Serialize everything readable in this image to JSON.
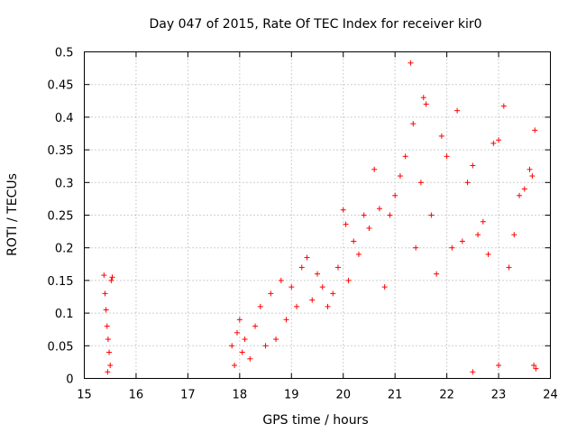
{
  "chart_data": {
    "type": "scatter",
    "title": "Day 047 of 2015, Rate Of TEC Index for receiver kir0",
    "xlabel": "GPS time / hours",
    "ylabel": "ROTI / TECUs",
    "xlim": [
      15,
      24
    ],
    "ylim": [
      0,
      0.5
    ],
    "grid": true,
    "marker": "+",
    "color": "#ff0000",
    "x_ticks": [
      15,
      16,
      17,
      18,
      19,
      20,
      21,
      22,
      23,
      24
    ],
    "x_tick_labels": [
      "15",
      "16",
      "17",
      "18",
      "19",
      "20",
      "21",
      "22",
      "23",
      "24"
    ],
    "y_ticks": [
      0,
      0.05,
      0.1,
      0.15,
      0.2,
      0.25,
      0.3,
      0.35,
      0.4,
      0.45,
      0.5
    ],
    "y_tick_labels": [
      "0",
      "0.05",
      "0.1",
      "0.15",
      "0.2",
      "0.25",
      "0.3",
      "0.35",
      "0.4",
      "0.45",
      "0.5"
    ],
    "series": [
      {
        "name": "ROTI",
        "points": [
          [
            15.38,
            0.158
          ],
          [
            15.4,
            0.13
          ],
          [
            15.42,
            0.105
          ],
          [
            15.44,
            0.08
          ],
          [
            15.46,
            0.06
          ],
          [
            15.48,
            0.04
          ],
          [
            15.5,
            0.02
          ],
          [
            15.52,
            0.15
          ],
          [
            15.54,
            0.155
          ],
          [
            15.45,
            0.01
          ],
          [
            17.85,
            0.05
          ],
          [
            17.9,
            0.02
          ],
          [
            17.95,
            0.07
          ],
          [
            18.0,
            0.09
          ],
          [
            18.05,
            0.04
          ],
          [
            18.1,
            0.06
          ],
          [
            18.2,
            0.03
          ],
          [
            18.3,
            0.08
          ],
          [
            18.4,
            0.11
          ],
          [
            18.5,
            0.05
          ],
          [
            18.6,
            0.13
          ],
          [
            18.7,
            0.06
          ],
          [
            18.8,
            0.15
          ],
          [
            18.9,
            0.09
          ],
          [
            19.0,
            0.14
          ],
          [
            19.1,
            0.11
          ],
          [
            19.2,
            0.17
          ],
          [
            19.3,
            0.185
          ],
          [
            19.4,
            0.12
          ],
          [
            19.5,
            0.16
          ],
          [
            19.6,
            0.14
          ],
          [
            19.7,
            0.11
          ],
          [
            19.8,
            0.13
          ],
          [
            19.9,
            0.17
          ],
          [
            20.0,
            0.258
          ],
          [
            20.05,
            0.236
          ],
          [
            20.1,
            0.15
          ],
          [
            20.2,
            0.21
          ],
          [
            20.3,
            0.19
          ],
          [
            20.4,
            0.25
          ],
          [
            20.5,
            0.23
          ],
          [
            20.6,
            0.32
          ],
          [
            20.7,
            0.26
          ],
          [
            20.8,
            0.14
          ],
          [
            20.9,
            0.25
          ],
          [
            21.0,
            0.28
          ],
          [
            21.1,
            0.31
          ],
          [
            21.2,
            0.34
          ],
          [
            21.3,
            0.483
          ],
          [
            21.35,
            0.39
          ],
          [
            21.4,
            0.2
          ],
          [
            21.5,
            0.3
          ],
          [
            21.55,
            0.43
          ],
          [
            21.6,
            0.42
          ],
          [
            21.7,
            0.25
          ],
          [
            21.8,
            0.16
          ],
          [
            21.9,
            0.371
          ],
          [
            22.0,
            0.34
          ],
          [
            22.1,
            0.2
          ],
          [
            22.2,
            0.41
          ],
          [
            22.3,
            0.21
          ],
          [
            22.4,
            0.3
          ],
          [
            22.5,
            0.326
          ],
          [
            22.6,
            0.22
          ],
          [
            22.7,
            0.24
          ],
          [
            22.8,
            0.19
          ],
          [
            22.9,
            0.36
          ],
          [
            23.0,
            0.365
          ],
          [
            23.1,
            0.417
          ],
          [
            23.2,
            0.17
          ],
          [
            23.3,
            0.22
          ],
          [
            23.4,
            0.28
          ],
          [
            23.5,
            0.29
          ],
          [
            23.6,
            0.32
          ],
          [
            23.65,
            0.31
          ],
          [
            23.7,
            0.38
          ],
          [
            23.72,
            0.015
          ],
          [
            23.68,
            0.02
          ],
          [
            23.0,
            0.02
          ],
          [
            22.5,
            0.01
          ]
        ]
      }
    ]
  }
}
